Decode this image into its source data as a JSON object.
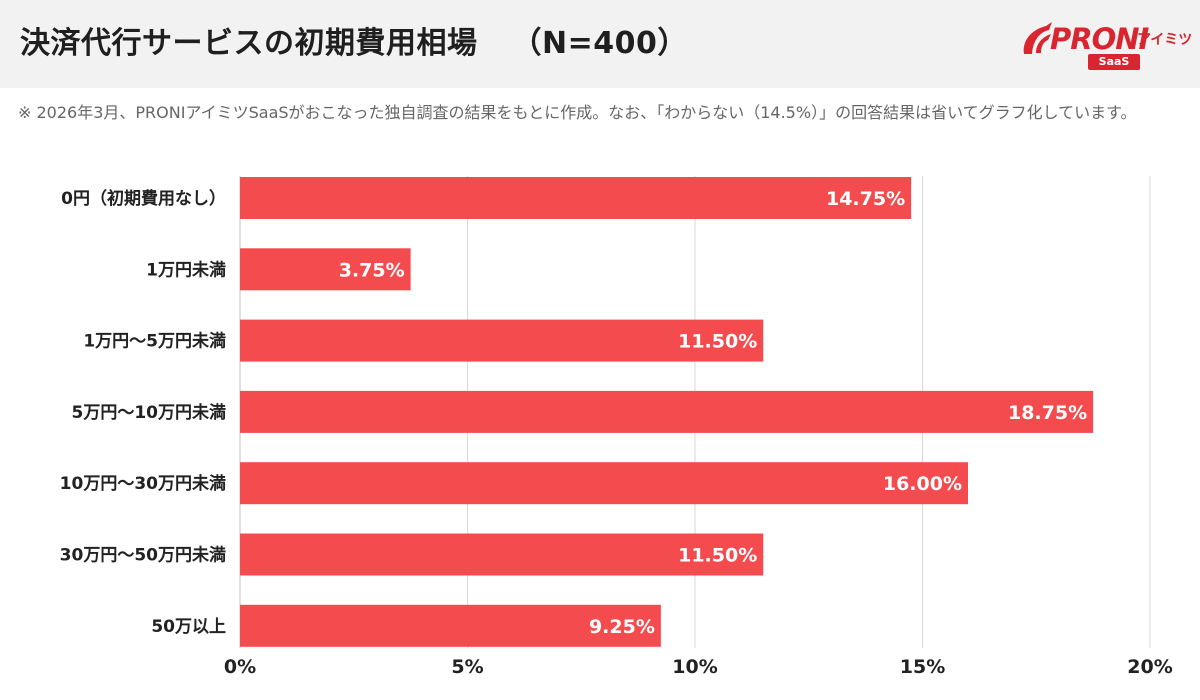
{
  "header": {
    "title": "決済代行サービスの初期費用相場",
    "sample_size": "（N=400）"
  },
  "logo": {
    "brand": "PRONI",
    "product": "アイミツ",
    "badge": "SaaS"
  },
  "note": "※ 2026年3月、PRONIアイミツSaaSがおこなった独自調査の結果をもとに作成。なお、「わからない（14.5%）」の回答結果は省いてグラフ化しています。",
  "colors": {
    "bar": "#f44b4f",
    "grid": "#d9d9d9",
    "header_bg": "#f2f2f2",
    "brand": "#d9252f"
  },
  "chart_data": {
    "type": "bar",
    "orientation": "horizontal",
    "categories": [
      "0円（初期費用なし）",
      "1万円未満",
      "1万円〜5万円未満",
      "5万円〜10万円未満",
      "10万円〜30万円未満",
      "30万円〜50万円未満",
      "50万以上"
    ],
    "values": [
      14.75,
      3.75,
      11.5,
      18.75,
      16.0,
      11.5,
      9.25
    ],
    "value_labels": [
      "14.75%",
      "3.75%",
      "11.50%",
      "18.75%",
      "16.00%",
      "11.50%",
      "9.25%"
    ],
    "xlim": [
      0,
      20
    ],
    "xticks": [
      0,
      5,
      10,
      15,
      20
    ],
    "xtick_labels": [
      "0%",
      "5%",
      "10%",
      "15%",
      "20%"
    ],
    "unit": "%",
    "grid": true,
    "legend": "none"
  }
}
